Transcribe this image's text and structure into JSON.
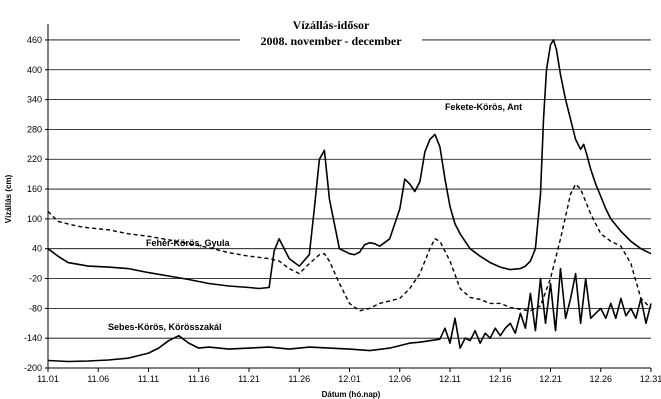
{
  "chart_data": {
    "type": "line",
    "title": "Vízállás-idősor",
    "subtitle": "2008. november - december",
    "xlabel": "Dátum (hó.nap)",
    "ylabel": "Vízállás (cm)",
    "ylim": [
      -200,
      480
    ],
    "yticks": [
      -200,
      -140,
      -80,
      -20,
      40,
      100,
      160,
      220,
      280,
      340,
      400,
      460
    ],
    "xlim": [
      0,
      60
    ],
    "xticks": [
      0,
      5,
      10,
      15,
      20,
      25,
      30,
      35,
      40,
      45,
      50,
      55,
      60
    ],
    "xticklabels": [
      "11.01",
      "11.06",
      "11.11",
      "11.16",
      "11.21",
      "11.26",
      "12.01",
      "12.06",
      "12.11",
      "12.16",
      "12.21",
      "12.26",
      "12.31"
    ],
    "grid": "horizontal",
    "series": [
      {
        "name": "Fekete-Körös, Ant",
        "style": "solid",
        "x": [
          0,
          1,
          2,
          4,
          6,
          8,
          10,
          12,
          14,
          16,
          18,
          20,
          21,
          22,
          22.5,
          23,
          23.5,
          24,
          25,
          26,
          26.5,
          27,
          27.5,
          28,
          29,
          30,
          30.5,
          31,
          31.5,
          32,
          32.5,
          33,
          34,
          35,
          35.5,
          36,
          36.5,
          37,
          37.5,
          38,
          38.5,
          39,
          39.5,
          40,
          40.5,
          41,
          41.5,
          42,
          43,
          44,
          45,
          46,
          47,
          47.5,
          48,
          48.5,
          49,
          49.3,
          49.6,
          50,
          50.3,
          50.6,
          51,
          51.5,
          52,
          52.5,
          53,
          53.3,
          53.6,
          54,
          54.5,
          55,
          55.5,
          56,
          57,
          58,
          59,
          60
        ],
        "values": [
          40,
          25,
          12,
          5,
          3,
          0,
          -8,
          -15,
          -22,
          -30,
          -35,
          -38,
          -40,
          -38,
          35,
          60,
          40,
          20,
          5,
          28,
          120,
          220,
          238,
          140,
          40,
          30,
          28,
          33,
          48,
          52,
          50,
          45,
          60,
          120,
          180,
          170,
          155,
          175,
          235,
          260,
          270,
          245,
          180,
          125,
          90,
          70,
          55,
          40,
          25,
          12,
          3,
          -2,
          0,
          5,
          15,
          40,
          150,
          300,
          400,
          450,
          460,
          440,
          390,
          340,
          300,
          260,
          240,
          250,
          230,
          200,
          170,
          145,
          120,
          100,
          75,
          55,
          40,
          30
        ]
      },
      {
        "name": "Fehér-Körös, Gyula",
        "style": "dashed",
        "x": [
          0,
          1,
          2,
          3,
          4,
          5,
          6,
          8,
          10,
          12,
          14,
          16,
          18,
          20,
          22,
          23,
          24,
          25,
          26,
          27,
          27.5,
          28,
          29,
          30,
          31,
          32,
          33,
          34,
          35,
          36,
          37,
          38,
          38.5,
          39,
          40,
          41,
          42,
          43,
          44,
          45,
          46,
          47,
          48,
          49,
          50,
          51,
          52,
          52.5,
          53,
          54,
          55,
          56,
          57,
          58,
          59,
          60
        ],
        "values": [
          115,
          95,
          90,
          85,
          82,
          80,
          78,
          70,
          65,
          58,
          50,
          42,
          32,
          25,
          20,
          15,
          0,
          -10,
          10,
          28,
          30,
          15,
          -30,
          -70,
          -85,
          -80,
          -70,
          -65,
          -60,
          -40,
          -10,
          40,
          60,
          55,
          15,
          -40,
          -58,
          -62,
          -70,
          -70,
          -78,
          -82,
          -85,
          -75,
          -20,
          60,
          150,
          170,
          160,
          110,
          70,
          55,
          45,
          10,
          -60,
          -80
        ]
      },
      {
        "name": "Sebes-Körös, Körösszakál",
        "style": "solid",
        "x": [
          0,
          2,
          4,
          6,
          8,
          9,
          10,
          11,
          12,
          13,
          14,
          15,
          16,
          18,
          20,
          22,
          24,
          26,
          28,
          30,
          32,
          34,
          35,
          36,
          37,
          38,
          39,
          39.5,
          40,
          40.5,
          41,
          41.5,
          42,
          42.5,
          43,
          43.5,
          44,
          44.5,
          45,
          45.5,
          46,
          46.5,
          47,
          47.5,
          48,
          48.5,
          49,
          49.5,
          50,
          50.5,
          51,
          51.5,
          52,
          52.5,
          53,
          53.5,
          54,
          54.5,
          55,
          55.5,
          56,
          56.5,
          57,
          57.5,
          58,
          58.5,
          59,
          59.5,
          60
        ],
        "values": [
          -185,
          -187,
          -186,
          -184,
          -180,
          -175,
          -170,
          -160,
          -145,
          -135,
          -150,
          -160,
          -158,
          -162,
          -160,
          -158,
          -162,
          -158,
          -160,
          -162,
          -165,
          -160,
          -155,
          -150,
          -148,
          -145,
          -142,
          -120,
          -150,
          -100,
          -160,
          -140,
          -145,
          -125,
          -150,
          -130,
          -140,
          -120,
          -135,
          -120,
          -110,
          -130,
          -90,
          -120,
          -50,
          -125,
          -20,
          -110,
          -30,
          -125,
          0,
          -100,
          -60,
          -10,
          -110,
          -20,
          -100,
          -90,
          -80,
          -100,
          -70,
          -100,
          -60,
          -95,
          -80,
          -100,
          -60,
          -110,
          -70
        ]
      }
    ]
  }
}
